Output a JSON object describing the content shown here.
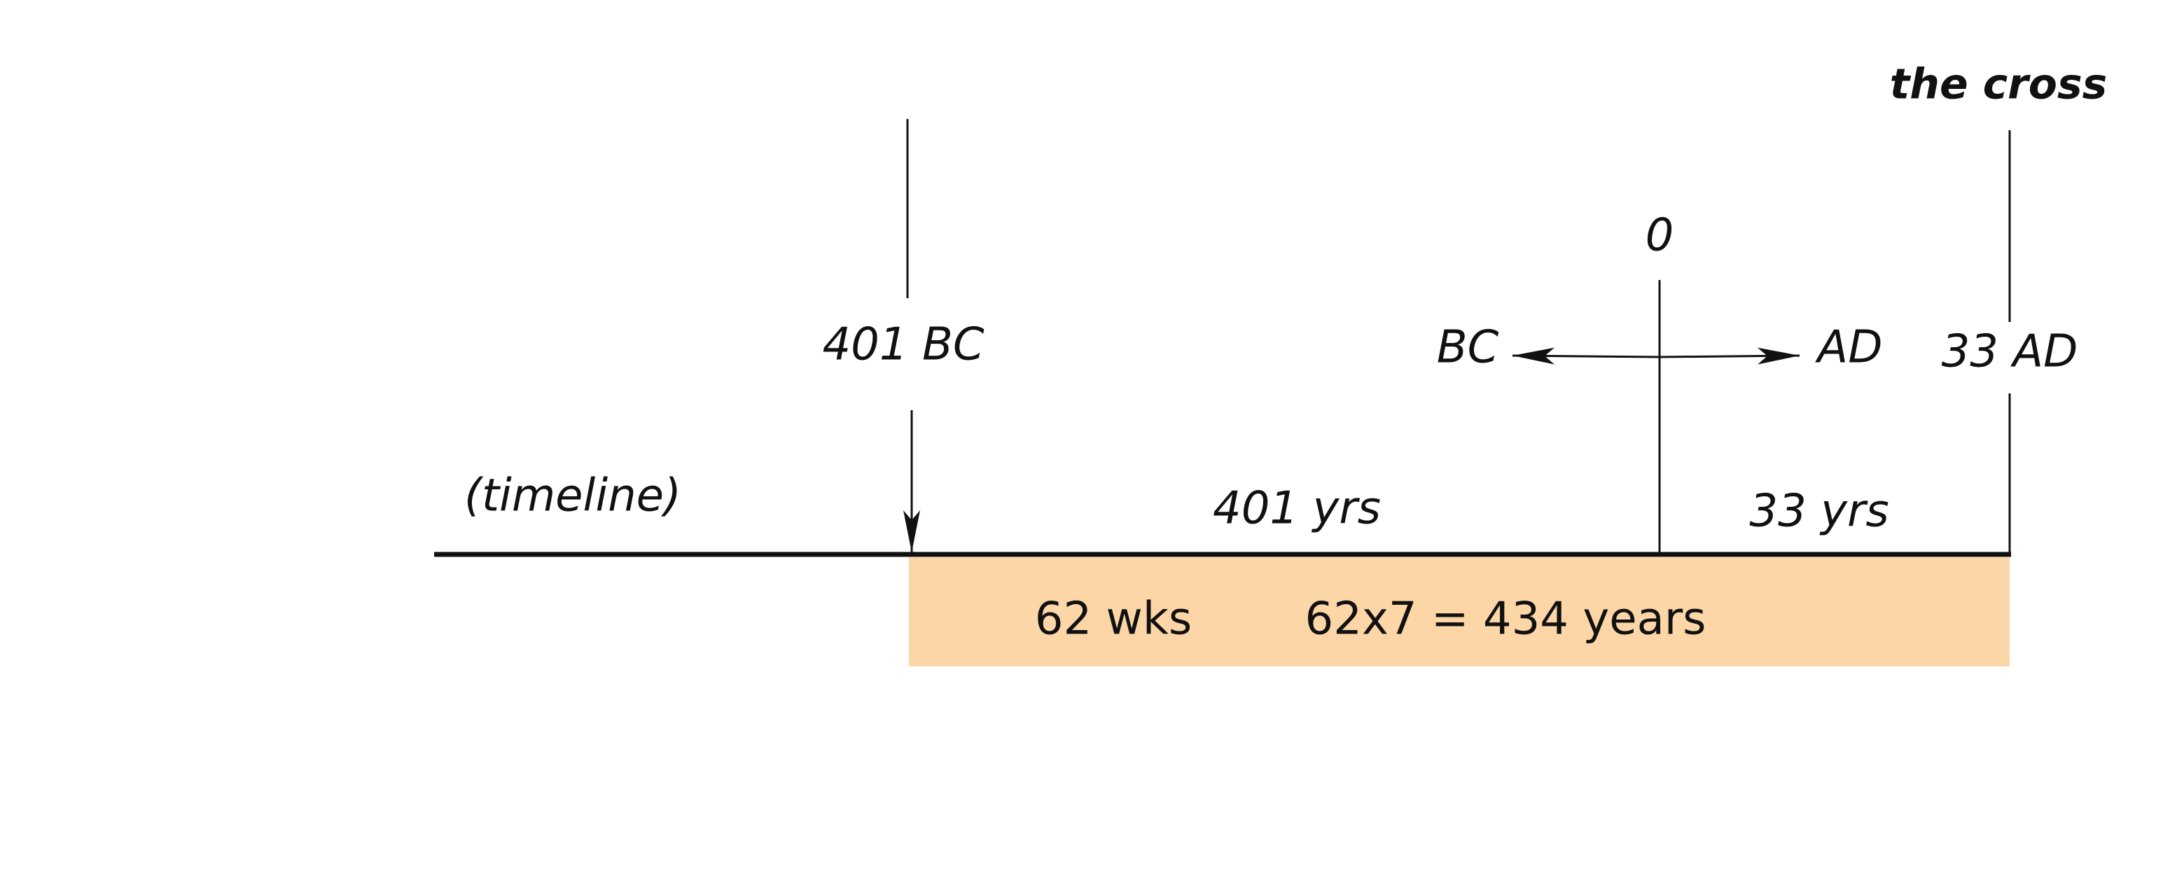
{
  "title": "the cross",
  "labels": {
    "zero": "0",
    "start": "401 BC",
    "bc": "BC",
    "ad": "AD",
    "end": "33 AD",
    "timeline": "(timeline)",
    "span_before": "401 yrs",
    "span_after": "33 yrs"
  },
  "bar": {
    "weeks": "62 wks",
    "years": "62x7 = 434 years"
  }
}
